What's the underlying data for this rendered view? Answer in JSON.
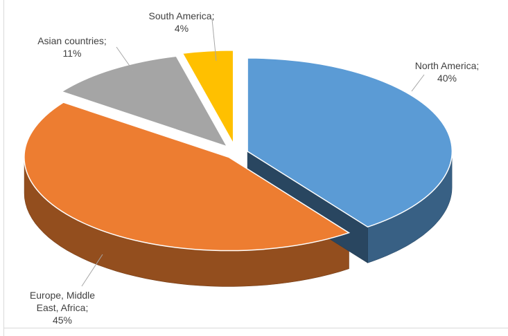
{
  "chart_data": {
    "type": "pie",
    "title": "",
    "labels": [
      "North America",
      "Europe, Middle East, Africa",
      "Asian countries",
      "South America"
    ],
    "values": [
      40,
      45,
      11,
      4
    ],
    "value_labels": [
      "40%",
      "45%",
      "11%",
      "4%"
    ],
    "data_labels": [
      [
        "North America;",
        "40%"
      ],
      [
        "Europe, Middle",
        "East, Africa;",
        "45%"
      ],
      [
        "Asian countries;",
        "11%"
      ],
      [
        "South America;",
        "4%"
      ]
    ],
    "colors": [
      "#5b9bd5",
      "#ed7d31",
      "#a5a5a5",
      "#ffc000"
    ],
    "exploded": true,
    "style": "3d"
  }
}
